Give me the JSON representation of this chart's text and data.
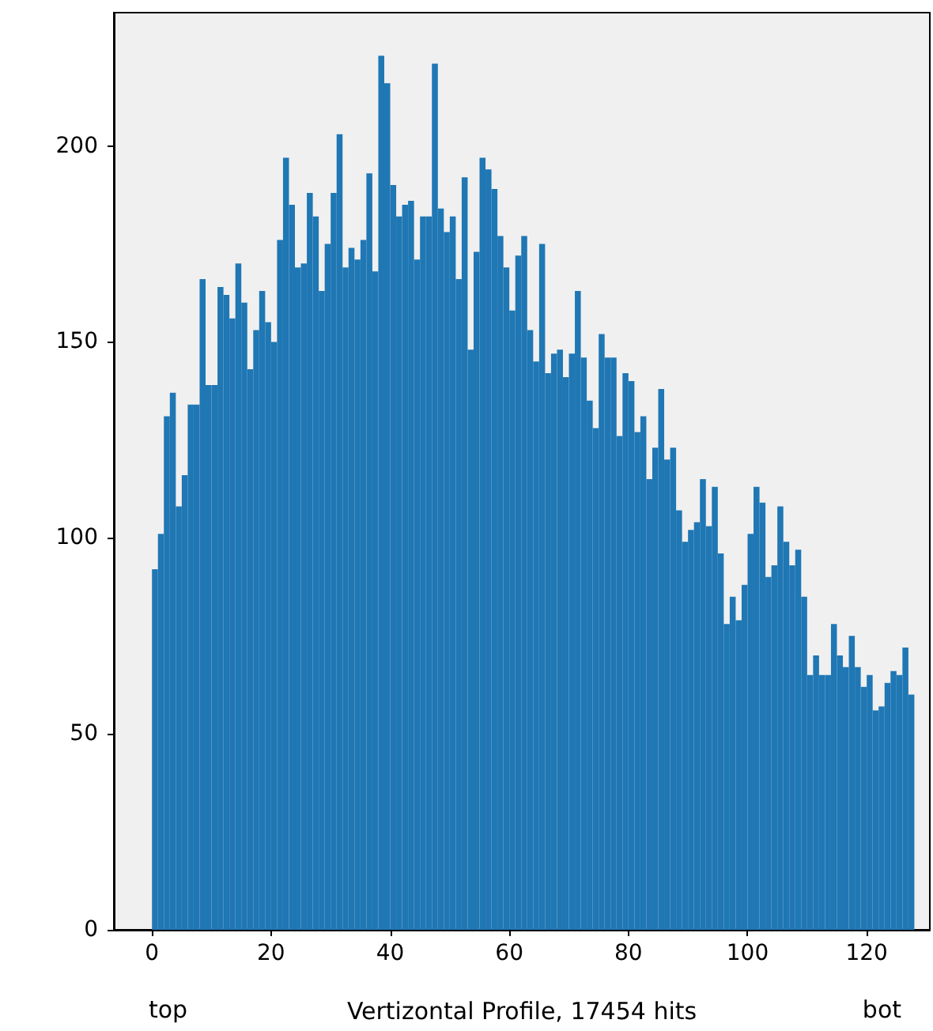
{
  "chart_data": {
    "type": "histogram",
    "xlabel": "Vertizontal Profile, 17454 hits",
    "annotations": [
      "top",
      "bot"
    ],
    "bins": [
      0,
      1,
      2,
      3,
      4,
      5,
      6,
      7,
      8,
      9,
      10,
      11,
      12,
      13,
      14,
      15,
      16,
      17,
      18,
      19,
      20,
      21,
      22,
      23,
      24,
      25,
      26,
      27,
      28,
      29,
      30,
      31,
      32,
      33,
      34,
      35,
      36,
      37,
      38,
      39,
      40,
      41,
      42,
      43,
      44,
      45,
      46,
      47,
      48,
      49,
      50,
      51,
      52,
      53,
      54,
      55,
      56,
      57,
      58,
      59,
      60,
      61,
      62,
      63,
      64,
      65,
      66,
      67,
      68,
      69,
      70,
      71,
      72,
      73,
      74,
      75,
      76,
      77,
      78,
      79,
      80,
      81,
      82,
      83,
      84,
      85,
      86,
      87,
      88,
      89,
      90,
      91,
      92,
      93,
      94,
      95,
      96,
      97,
      98,
      99,
      100,
      101,
      102,
      103,
      104,
      105,
      106,
      107,
      108,
      109,
      110,
      111,
      112,
      113,
      114,
      115,
      116,
      117,
      118,
      119,
      120,
      121,
      122,
      123,
      124,
      125,
      126,
      127,
      128
    ],
    "values": [
      92,
      101,
      131,
      137,
      108,
      116,
      134,
      134,
      166,
      139,
      139,
      164,
      162,
      156,
      170,
      160,
      143,
      153,
      163,
      155,
      150,
      176,
      197,
      185,
      169,
      170,
      188,
      182,
      163,
      175,
      188,
      203,
      169,
      174,
      171,
      176,
      193,
      168,
      223,
      216,
      190,
      182,
      185,
      186,
      171,
      182,
      182,
      221,
      184,
      178,
      182,
      166,
      192,
      148,
      173,
      197,
      194,
      189,
      177,
      169,
      158,
      172,
      177,
      153,
      145,
      175,
      142,
      147,
      148,
      141,
      147,
      163,
      146,
      135,
      128,
      152,
      146,
      146,
      126,
      142,
      140,
      127,
      131,
      115,
      123,
      138,
      120,
      123,
      107,
      99,
      102,
      104,
      115,
      103,
      113,
      96,
      78,
      85,
      79,
      88,
      101,
      113,
      109,
      90,
      93,
      108,
      99,
      93,
      97,
      85,
      65,
      70,
      65,
      65,
      78,
      70,
      67,
      75,
      67,
      62,
      65,
      56,
      57,
      63,
      66,
      65,
      72,
      60
    ],
    "color": "#1f77b4",
    "xlim": [
      -6.4,
      130.6
    ],
    "xticks": [
      0,
      20,
      40,
      60,
      80,
      100,
      120
    ],
    "ylim": [
      0,
      234
    ],
    "yticks": [
      0,
      50,
      100,
      150,
      200
    ],
    "grid": false
  }
}
